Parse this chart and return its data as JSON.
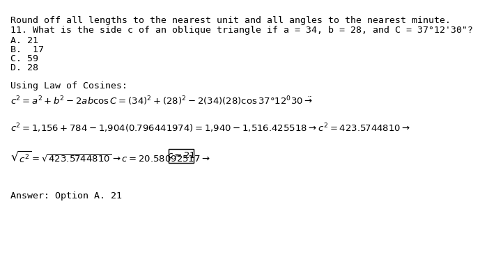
{
  "background_color": "#ffffff",
  "header_text": "Round off all lengths to the nearest unit and all angles to the nearest minute.",
  "question_text": "11. What is the side c of an oblique triangle if a = 34, b = 28, and C = 37°12'30\"?",
  "options": [
    "A. 21",
    "B.  17",
    "C. 59",
    "D. 28"
  ],
  "solution_label": "Using Law of Cosines:",
  "line1_math": "$c^2 = a^2 + b^2 - 2ab\\cos C = (34)^2 + (28)^2 - 2(34)(28)\\cos 37°12'30\" \\rightarrow$",
  "line2_math": "$c^2 = 1{,}156 + 784 - 1{,}904(0.796441974) = 1{,}940 - 1{,}516.425518 \\rightarrow c^2 = 423.5744810 \\rightarrow$",
  "line3_left": "$\\sqrt{c^2} = \\sqrt{423.5744810} \\rightarrow c = 20.58092517 \\rightarrow$",
  "line3_box": "$c \\approx 21$",
  "answer_text": "Answer: Option A. 21",
  "font_family": "monospace",
  "font_size_main": 10.5,
  "font_size_math": 11,
  "text_color": "#000000"
}
